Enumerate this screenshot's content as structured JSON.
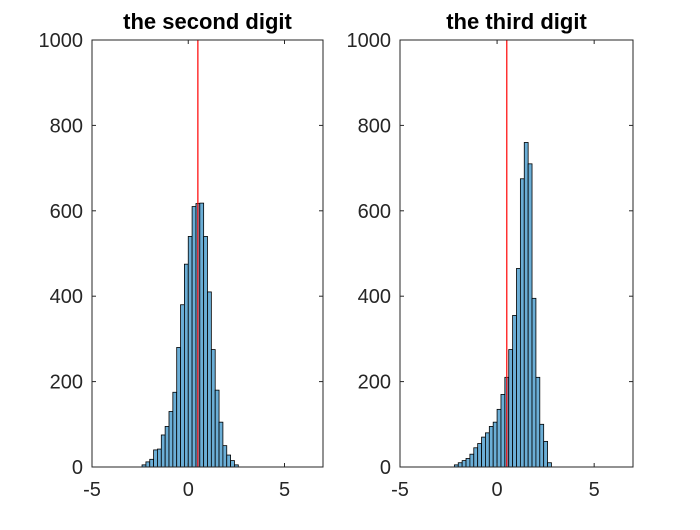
{
  "chart_data": [
    {
      "type": "bar",
      "title": "the second digit",
      "xlim": [
        -5,
        7
      ],
      "ylim": [
        0,
        1000
      ],
      "xticks": [
        -5,
        0,
        5
      ],
      "yticks": [
        0,
        200,
        400,
        600,
        800,
        1000
      ],
      "bin_width": 0.2,
      "bins_start": -2.4,
      "values": [
        5,
        12,
        18,
        40,
        42,
        75,
        95,
        130,
        175,
        280,
        380,
        475,
        540,
        610,
        617,
        618,
        540,
        410,
        275,
        180,
        105,
        50,
        28,
        15,
        5
      ],
      "reference_line_x": 0.5,
      "bar_color": "#6baed6",
      "line_color": "#ff0000"
    },
    {
      "type": "bar",
      "title": "the third digit",
      "xlim": [
        -5,
        7
      ],
      "ylim": [
        0,
        1000
      ],
      "xticks": [
        -5,
        0,
        5
      ],
      "yticks": [
        0,
        200,
        400,
        600,
        800,
        1000
      ],
      "bin_width": 0.2,
      "bins_start": -2.2,
      "values": [
        5,
        10,
        15,
        20,
        30,
        45,
        55,
        70,
        80,
        95,
        105,
        135,
        170,
        210,
        275,
        355,
        465,
        675,
        760,
        710,
        395,
        210,
        100,
        60,
        10
      ],
      "reference_line_x": 0.5,
      "bar_color": "#6baed6",
      "line_color": "#ff0000"
    }
  ]
}
